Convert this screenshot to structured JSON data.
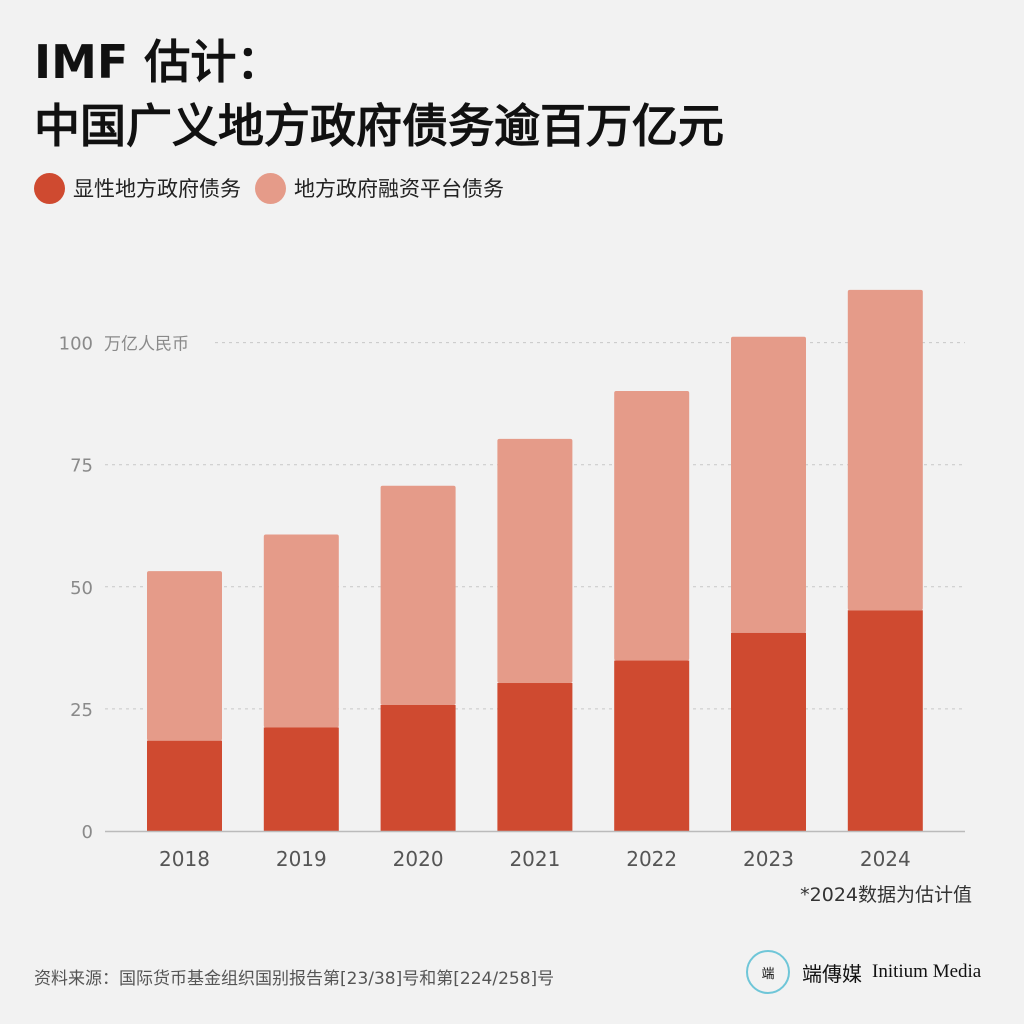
{
  "title": {
    "line1": "IMF 估计：",
    "line2": "中国广义地方政府债务逾百万亿元"
  },
  "legend": [
    {
      "label": "显性地方政府债务",
      "color": "#cf4a30"
    },
    {
      "label": "地方政府融资平台债务",
      "color": "#e59b89"
    }
  ],
  "chart_data": {
    "type": "bar",
    "stacked": true,
    "categories": [
      "2018",
      "2019",
      "2020",
      "2021",
      "2022",
      "2023",
      "2024"
    ],
    "series": [
      {
        "name": "显性地方政府债务",
        "color": "#cf4a30",
        "values": [
          18.5,
          21.2,
          25.8,
          30.3,
          34.9,
          40.6,
          45.2
        ]
      },
      {
        "name": "地方政府融资平台债务",
        "color": "#e59b89",
        "values": [
          34.7,
          39.5,
          44.9,
          50.0,
          55.2,
          60.6,
          65.6
        ]
      }
    ],
    "yticks": [
      0,
      25,
      50,
      75,
      100
    ],
    "ylim": [
      0,
      115
    ],
    "unit_label": "万亿人民币",
    "grid": true
  },
  "footnote": "*2024数据为估计值",
  "source": "资料来源：国际货币基金组织国别报告第[23/38]号和第[224/258]号",
  "brand": {
    "logo_text": "端",
    "name_cn": "端傳媒",
    "name_en": "Initium Media"
  }
}
